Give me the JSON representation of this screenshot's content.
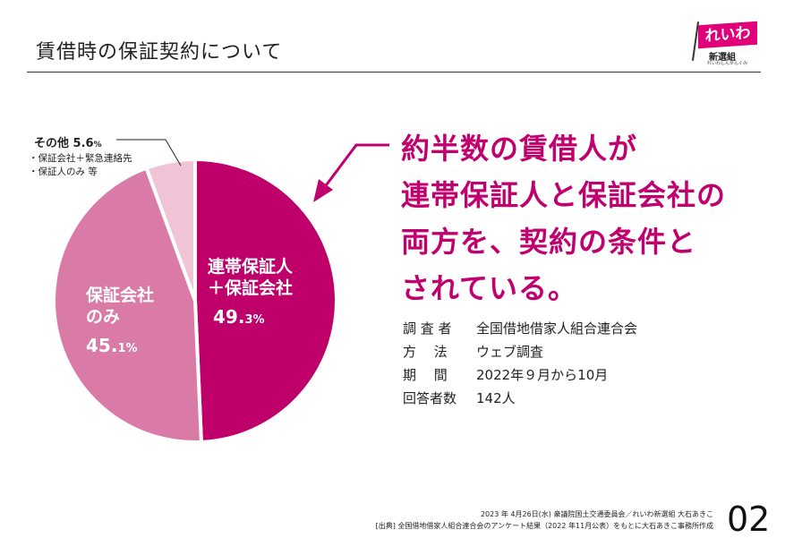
{
  "title": "賃借時の保証契約について",
  "logo": {
    "main": "れいわ",
    "sub": "新選組",
    "tagline": "れいわしんせんぐみ"
  },
  "chart_data": {
    "type": "pie",
    "start": "top",
    "direction": "clockwise",
    "slices": [
      {
        "label_lines": [
          "連帯保証人",
          "＋保証会社"
        ],
        "value": 49.3,
        "num": "49.",
        "dec": "3%",
        "color": "#bf006b"
      },
      {
        "label_lines": [
          "保証会社",
          "のみ"
        ],
        "value": 45.1,
        "num": "45.",
        "dec": "1%",
        "color": "#d97ba6"
      },
      {
        "label": "その他",
        "value": 5.6,
        "value_label": "5.6",
        "unit": "%",
        "color": "#f0c3d7",
        "notes": [
          "・保証会社＋緊急連絡先",
          "・保証人のみ 等"
        ]
      }
    ]
  },
  "headline": [
    "約半数の賃借人が",
    "連帯保証人と保証会社の",
    "両方を、契約の条件と",
    "されている。"
  ],
  "survey": [
    {
      "k": "調 査 者",
      "v": "全国借地借家人組合連合会"
    },
    {
      "k": "方　 法",
      "v": "ウェブ調査"
    },
    {
      "k": "期　 間",
      "v": "2022年９月から10月"
    },
    {
      "k": "回答者数",
      "v": "142人"
    }
  ],
  "footer": [
    "2023 年 4月26日(水) 衆議院国土交通委員会／れいわ新選組 大石あきこ",
    "[出典] 全国借地借家人組合連合会のアンケート結果（2022 年11月公表）をもとに大石あきこ事務所作成"
  ],
  "page_number": "02"
}
